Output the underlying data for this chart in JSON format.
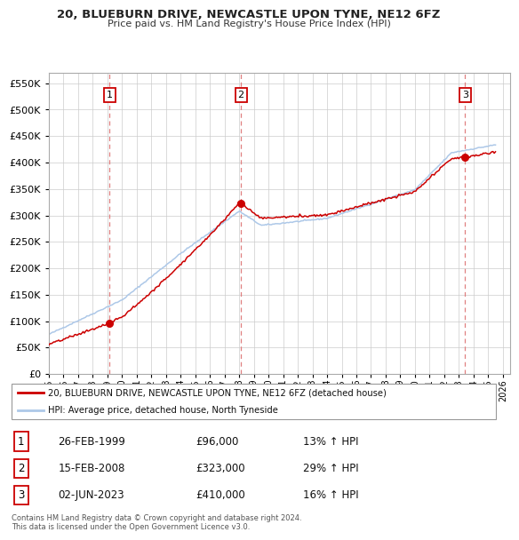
{
  "title": "20, BLUEBURN DRIVE, NEWCASTLE UPON TYNE, NE12 6FZ",
  "subtitle": "Price paid vs. HM Land Registry's House Price Index (HPI)",
  "legend_line1": "20, BLUEBURN DRIVE, NEWCASTLE UPON TYNE, NE12 6FZ (detached house)",
  "legend_line2": "HPI: Average price, detached house, North Tyneside",
  "footer": "Contains HM Land Registry data © Crown copyright and database right 2024.\nThis data is licensed under the Open Government Licence v3.0.",
  "transactions": [
    {
      "num": 1,
      "date": "26-FEB-1999",
      "price": 96000,
      "pct": "13%",
      "x_year": 1999.15
    },
    {
      "num": 2,
      "date": "15-FEB-2008",
      "price": 323000,
      "pct": "29%",
      "x_year": 2008.12
    },
    {
      "num": 3,
      "date": "02-JUN-2023",
      "price": 410000,
      "pct": "16%",
      "x_year": 2023.42
    }
  ],
  "hpi_color": "#adc8e8",
  "price_color": "#cc0000",
  "ylim_max": 570000,
  "xlim_start": 1995.0,
  "xlim_end": 2026.5,
  "xticks": [
    1995,
    1996,
    1997,
    1998,
    1999,
    2000,
    2001,
    2002,
    2003,
    2004,
    2005,
    2006,
    2007,
    2008,
    2009,
    2010,
    2011,
    2012,
    2013,
    2014,
    2015,
    2016,
    2017,
    2018,
    2019,
    2020,
    2021,
    2022,
    2023,
    2024,
    2025,
    2026
  ],
  "yticks": [
    0,
    50000,
    100000,
    150000,
    200000,
    250000,
    300000,
    350000,
    400000,
    450000,
    500000,
    550000
  ],
  "bg_color": "#ffffff",
  "grid_color": "#cccccc"
}
